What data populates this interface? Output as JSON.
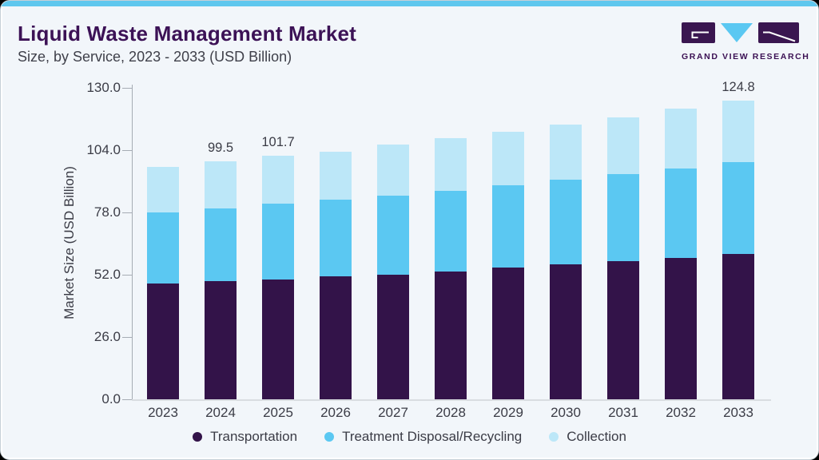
{
  "header": {
    "title": "Liquid Waste Management Market",
    "subtitle": "Size, by Service, 2023 - 2033 (USD Billion)"
  },
  "logo": {
    "text": "GRAND VIEW RESEARCH",
    "mark_purple": "#3a1650",
    "mark_blue": "#5bc8f2"
  },
  "colors": {
    "accent_bar": "#5fc7ee",
    "card_background": "#f2f6fa",
    "title": "#3c1256",
    "body_text": "#3b3c46",
    "axis_line": "#a6acb4",
    "baseline": "#d9dde1"
  },
  "chart_data": {
    "type": "bar",
    "stacked": true,
    "title": "Liquid Waste Management Market Size, by Service, 2023 - 2033 (USD Billion)",
    "xlabel": "",
    "ylabel": "Market Size (USD Billion)",
    "ylim": [
      0,
      130
    ],
    "yticks": [
      0.0,
      26.0,
      52.0,
      78.0,
      104.0,
      130.0
    ],
    "grid": false,
    "legend_position": "bottom",
    "categories": [
      "2023",
      "2024",
      "2025",
      "2026",
      "2027",
      "2028",
      "2029",
      "2030",
      "2031",
      "2032",
      "2033"
    ],
    "series": [
      {
        "name": "Transportation",
        "color": "#331349",
        "values": [
          48.3,
          49.3,
          50.0,
          51.3,
          52.0,
          53.3,
          55.0,
          56.3,
          57.7,
          59.0,
          60.7
        ]
      },
      {
        "name": "Treatment Disposal/Recycling",
        "color": "#5bc8f2",
        "values": [
          29.7,
          30.4,
          31.7,
          32.0,
          33.0,
          33.7,
          34.3,
          35.4,
          36.3,
          37.3,
          38.3
        ]
      },
      {
        "name": "Collection",
        "color": "#bce7f8",
        "values": [
          19.0,
          19.8,
          20.0,
          20.0,
          21.3,
          22.0,
          22.4,
          23.0,
          23.7,
          25.0,
          25.8
        ]
      }
    ],
    "totals": [
      97.0,
      99.5,
      101.7,
      103.3,
      106.3,
      109.0,
      111.7,
      114.7,
      117.7,
      121.3,
      124.8
    ],
    "total_labels": {
      "2024": "99.5",
      "2025": "101.7",
      "2033": "124.8"
    }
  }
}
